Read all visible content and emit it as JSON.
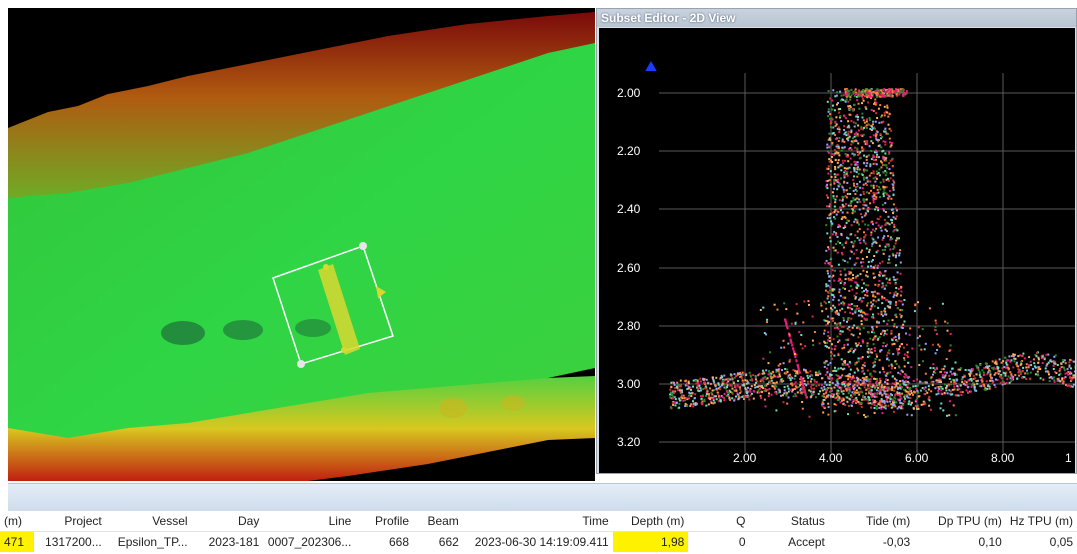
{
  "editor": {
    "title": "Subset Editor - 2D View",
    "y_ticks": [
      "2.00",
      "2.20",
      "2.40",
      "2.60",
      "2.80",
      "3.00",
      "3.20"
    ],
    "x_ticks": [
      "2.00",
      "4.00",
      "6.00",
      "8.00",
      "1"
    ],
    "colors": {
      "background": "#000000",
      "grid": "#5a5a5a",
      "axis_text": "#ffffff",
      "marker": "#1a3cff",
      "soundings": [
        "#ff7f3f",
        "#e61e78",
        "#2a8a2a",
        "#6fe0c0",
        "#c83232",
        "#9aa0ff",
        "#ffb060"
      ]
    }
  },
  "surface": {
    "colors": {
      "green": "#2fcf3f",
      "light_green": "#4fe05a",
      "yellow": "#d8c820",
      "red": "#c02010",
      "selection_box": "#ffffff",
      "selection_strip": "#d8d830"
    }
  },
  "grid": {
    "headers": [
      "(m)",
      "Project",
      "Vessel",
      "Day",
      "Line",
      "Profile",
      "Beam",
      "Time",
      "Depth (m)",
      "Q",
      "Status",
      "Tide (m)",
      "Dp TPU (m)",
      "Hz TPU (m)"
    ],
    "row": [
      "471",
      "1317200...",
      "Epsilon_TP...",
      "2023-181",
      "0007_202306...",
      "668",
      "662",
      "2023-06-30  14:19:09.411",
      "1,98",
      "0",
      "Accept",
      "-0,03",
      "0,10",
      "0,05"
    ],
    "highlight_color": "#fff200"
  }
}
